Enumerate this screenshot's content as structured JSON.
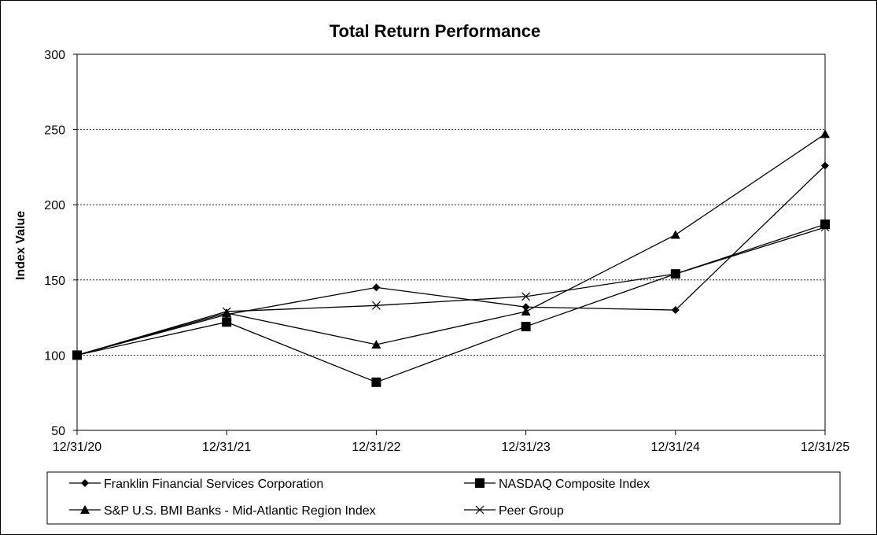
{
  "chart_data": {
    "type": "line",
    "title": "Total Return Performance",
    "xlabel": "",
    "ylabel": "Index Value",
    "categories": [
      "12/31/20",
      "12/31/21",
      "12/31/22",
      "12/31/23",
      "12/31/24",
      "12/31/25"
    ],
    "ylim": [
      50,
      300
    ],
    "yticks": [
      50,
      100,
      150,
      200,
      250,
      300
    ],
    "grid": "horizontal dashed",
    "legend_position": "bottom",
    "series": [
      {
        "name": "Franklin Financial Services Corporation",
        "marker": "diamond",
        "values": [
          100,
          127,
          145,
          132,
          130,
          226
        ]
      },
      {
        "name": "NASDAQ Composite Index",
        "marker": "square",
        "values": [
          100,
          122,
          82,
          119,
          154,
          187
        ]
      },
      {
        "name": "S&P U.S. BMI Banks - Mid-Atlantic Region Index",
        "marker": "triangle",
        "values": [
          100,
          128,
          107,
          129,
          180,
          247
        ]
      },
      {
        "name": "Peer Group",
        "marker": "x",
        "values": [
          100,
          129,
          133,
          139,
          154,
          185
        ]
      }
    ]
  }
}
